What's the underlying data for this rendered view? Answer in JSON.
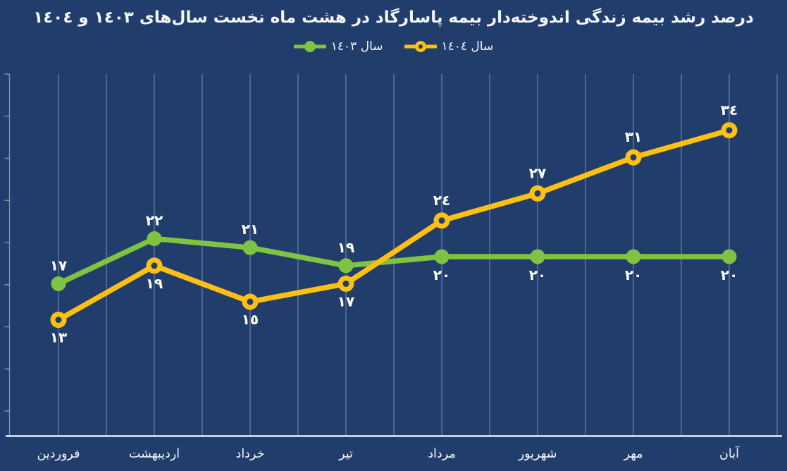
{
  "colors": {
    "background": "#213d6c",
    "grid": "rgba(214,226,245,0.5)",
    "axis": "#e9eff9",
    "text": "#ffffff"
  },
  "chart_data": {
    "type": "line",
    "title": "درصد رشد بیمه زندگی اندوخته‌دار بیمه پاسارگاد در هشت ماه نخست سال‌های ١٤٠٣ و ١٤٠٤",
    "categories": [
      "فروردین",
      "اردیبهشت",
      "خرداد",
      "تیر",
      "مرداد",
      "شهریور",
      "مهر",
      "آبان"
    ],
    "series": [
      {
        "name": "سال ١٤٠٣",
        "color": "#7fc342",
        "marker": "circle-solid",
        "values": [
          17,
          22,
          21,
          19,
          20,
          20,
          20,
          20
        ],
        "labels": [
          "١٧",
          "٢٢",
          "٢١",
          "١٩",
          "٢٠",
          "٢٠",
          "٢٠",
          "٢٠"
        ],
        "label_side": [
          "above",
          "above",
          "above",
          "above",
          "below",
          "below",
          "below",
          "below"
        ]
      },
      {
        "name": "سال ١٤٠٤",
        "color": "#fdc013",
        "marker": "circle-donut",
        "values": [
          13,
          19,
          15,
          17,
          24,
          27,
          31,
          34
        ],
        "labels": [
          "١٣",
          "١٩",
          "١٥",
          "١٧",
          "٢٤",
          "٢٧",
          "٣١",
          "٣٤"
        ],
        "label_side": [
          "below",
          "below",
          "below",
          "below",
          "above",
          "above",
          "above",
          "above"
        ]
      }
    ],
    "xlabel": "",
    "ylabel": "",
    "ylim": [
      0,
      41
    ],
    "grid": "vertical-only",
    "y_axis_labels": "none",
    "legend_position": "top-center"
  }
}
